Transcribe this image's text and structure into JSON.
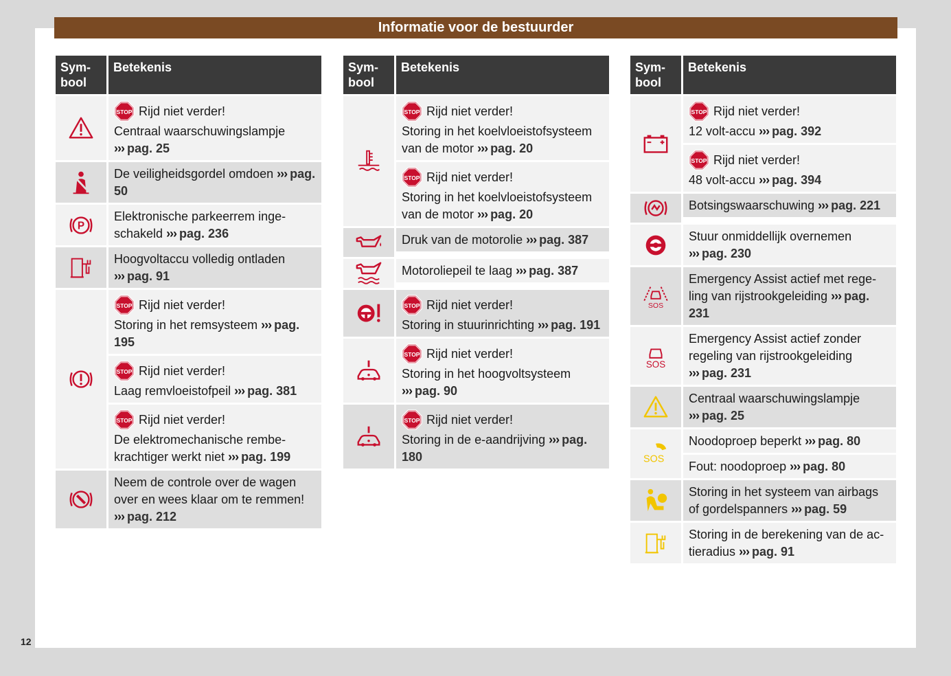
{
  "header": {
    "title": "Informatie voor de bestuurder"
  },
  "page_number": "12",
  "table_header": {
    "symbol": "Sym-\nbool",
    "meaning": "Betekenis"
  },
  "common": {
    "stop_text": "Rijd niet verder!",
    "chevrons": "›››"
  },
  "col1": [
    {
      "icon": "warning-triangle-red-icon",
      "entries": [
        {
          "stop": true,
          "text": "Centraal waarschuwingslampje",
          "ref": "pag. 25"
        }
      ]
    },
    {
      "icon": "seatbelt-icon",
      "entries": [
        {
          "stop": false,
          "text": "De veiligheidsgordel omdoen",
          "ref": "pag. 50"
        }
      ]
    },
    {
      "icon": "parking-brake-icon",
      "entries": [
        {
          "stop": false,
          "text": "Elektronische parkeerrem inge-schakeld",
          "ref": "pag. 236"
        }
      ]
    },
    {
      "icon": "hv-battery-empty-icon",
      "entries": [
        {
          "stop": false,
          "text": "Hoogvoltaccu volledig ontladen",
          "ref": "pag. 91"
        }
      ]
    },
    {
      "icon": "brake-system-icon",
      "entries": [
        {
          "stop": true,
          "text": "Storing in het remsysteem",
          "ref": "pag. 195"
        },
        {
          "stop": true,
          "text": "Laag remvloeistofpeil",
          "ref": "pag. 381"
        },
        {
          "stop": true,
          "text": "De elektromechanische rembe-krachtiger werkt niet",
          "ref": "pag. 199"
        }
      ]
    },
    {
      "icon": "brake-takeover-icon",
      "entries": [
        {
          "stop": false,
          "text": "Neem de controle over de wagen over en wees klaar om te remmen!",
          "ref": "pag. 212"
        }
      ]
    }
  ],
  "col2": [
    {
      "icon": "coolant-temperature-icon",
      "entries": [
        {
          "stop": true,
          "text": "Storing in het koelvloeistofsysteem van de motor",
          "ref": "pag. 20"
        },
        {
          "stop": true,
          "text": "Storing in het koelvloeistofsysteem van de motor",
          "ref": "pag. 20"
        }
      ]
    },
    {
      "icon": "oil-pressure-icon",
      "entries": [
        {
          "stop": false,
          "text": "Druk van de motorolie",
          "ref": "pag. 387"
        }
      ]
    },
    {
      "icon": "oil-level-icon",
      "entries": [
        {
          "stop": false,
          "text": "Motoroliepeil te laag",
          "ref": "pag. 387"
        }
      ]
    },
    {
      "icon": "steering-warning-icon",
      "entries": [
        {
          "stop": true,
          "text": "Storing in stuurinrichting",
          "ref": "pag. 191"
        }
      ]
    },
    {
      "icon": "hv-system-car-icon",
      "entries": [
        {
          "stop": true,
          "text": "Storing in het hoogvoltsysteem",
          "ref": "pag. 90"
        }
      ]
    },
    {
      "icon": "e-drive-car-icon",
      "entries": [
        {
          "stop": true,
          "text": "Storing in de e-aandrijving",
          "ref": "pag. 180"
        }
      ]
    }
  ],
  "col3": [
    {
      "icon": "battery-icon",
      "entries": [
        {
          "stop": true,
          "text": "12 volt-accu",
          "ref": "pag. 392"
        },
        {
          "stop": true,
          "text": "48 volt-accu",
          "ref": "pag. 394"
        }
      ]
    },
    {
      "icon": "collision-warning-icon",
      "entries": [
        {
          "stop": false,
          "text": "Botsingswaarschuwing",
          "ref": "pag. 221"
        }
      ]
    },
    {
      "icon": "steering-takeover-icon",
      "entries": [
        {
          "stop": false,
          "text": "Stuur onmiddellijk overnemen",
          "ref": "pag. 230"
        }
      ]
    },
    {
      "icon": "emergency-assist-lane-icon",
      "entries": [
        {
          "stop": false,
          "text": "Emergency Assist actief met rege-ling van rijstrookgeleiding",
          "ref": "pag. 231"
        }
      ]
    },
    {
      "icon": "emergency-assist-icon",
      "entries": [
        {
          "stop": false,
          "text": "Emergency Assist actief zonder regeling van rijstrookgeleiding",
          "ref": "pag. 231"
        }
      ]
    },
    {
      "icon": "warning-triangle-yellow-icon",
      "entries": [
        {
          "stop": false,
          "text": "Centraal waarschuwingslampje",
          "ref": "pag. 25"
        }
      ]
    },
    {
      "icon": "sos-phone-icon",
      "entries": [
        {
          "stop": false,
          "text": "Noodoproep beperkt",
          "ref": "pag. 80"
        },
        {
          "stop": false,
          "text": "Fout: noodoproep",
          "ref": "pag. 80"
        }
      ]
    },
    {
      "icon": "airbag-icon",
      "entries": [
        {
          "stop": false,
          "text": "Storing in het systeem van airbags of gordelspanners",
          "ref": "pag. 59"
        }
      ]
    },
    {
      "icon": "range-calc-icon",
      "entries": [
        {
          "stop": false,
          "text": "Storing in de berekening van de ac-tieradius",
          "ref": "pag. 91"
        }
      ]
    }
  ],
  "sos_label": "SOS",
  "stop_sign_label": "STOP",
  "colors": {
    "banner": "#7a4a23",
    "header_bg": "#3a3a3a",
    "row_bg": "#dedede",
    "icon_red": "#c8102e",
    "icon_yellow": "#f2c500"
  }
}
